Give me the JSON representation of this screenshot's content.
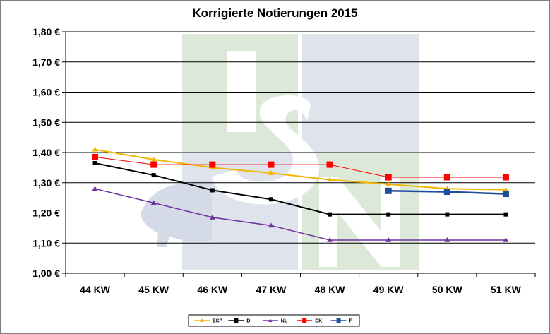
{
  "chart_data": {
    "type": "line",
    "title": "Korrigierte Notierungen 2015",
    "xlabel": "",
    "ylabel": "",
    "categories": [
      "44 KW",
      "45 KW",
      "46 KW",
      "47 KW",
      "48 KW",
      "49 KW",
      "50 KW",
      "51 KW"
    ],
    "ylim": [
      1.0,
      1.8
    ],
    "yticks": [
      "1,00 €",
      "1,10 €",
      "1,20 €",
      "1,30 €",
      "1,40 €",
      "1,50 €",
      "1,60 €",
      "1,70 €",
      "1,80 €"
    ],
    "grid": true,
    "legend_position": "bottom",
    "watermark": "ISN",
    "series": [
      {
        "name": "ESP",
        "color": "#f2b600",
        "marker": "triangle",
        "values": [
          1.41,
          1.377,
          1.35,
          1.332,
          1.31,
          1.295,
          1.28,
          1.277
        ]
      },
      {
        "name": "D",
        "color": "#000000",
        "marker": "square-small",
        "values": [
          1.365,
          1.325,
          1.275,
          1.245,
          1.195,
          1.195,
          1.195,
          1.195
        ]
      },
      {
        "name": "NL",
        "color": "#7030a0",
        "marker": "triangle",
        "values": [
          1.28,
          1.233,
          1.185,
          1.158,
          1.11,
          1.11,
          1.11,
          1.11
        ]
      },
      {
        "name": "DK",
        "color": "#ff0000",
        "marker": "square",
        "values": [
          1.385,
          1.36,
          1.36,
          1.36,
          1.36,
          1.318,
          1.318,
          1.318
        ]
      },
      {
        "name": "F",
        "color": "#1f4e9c",
        "marker": "square",
        "values": [
          null,
          null,
          null,
          null,
          null,
          1.273,
          1.27,
          1.263
        ]
      }
    ]
  }
}
